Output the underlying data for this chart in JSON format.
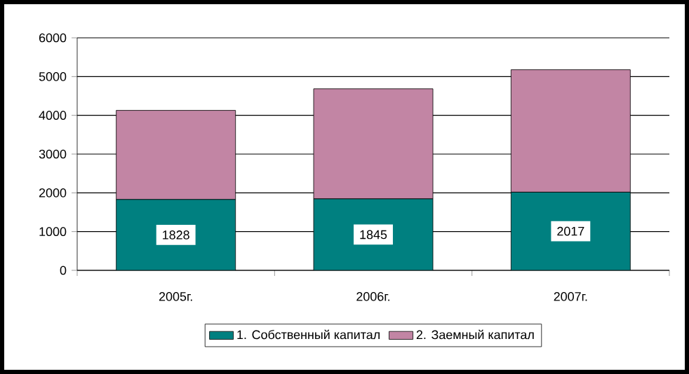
{
  "chart_data": {
    "type": "bar",
    "stacked": true,
    "categories": [
      "2005г.",
      "2006г.",
      "2007г."
    ],
    "series": [
      {
        "name": "1. Собственный капитал",
        "color": "#008080",
        "values": [
          1828,
          1845,
          2017
        ],
        "value_labels": [
          "1828",
          "1845",
          "2017"
        ]
      },
      {
        "name": "2. Заемный капитал",
        "color": "#c285a4",
        "values": [
          2300,
          2840,
          3160
        ]
      }
    ],
    "ylim": [
      0,
      6000
    ],
    "yticks": [
      0,
      1000,
      2000,
      3000,
      4000,
      5000,
      6000
    ],
    "grid": "y",
    "legend": "bottom"
  }
}
